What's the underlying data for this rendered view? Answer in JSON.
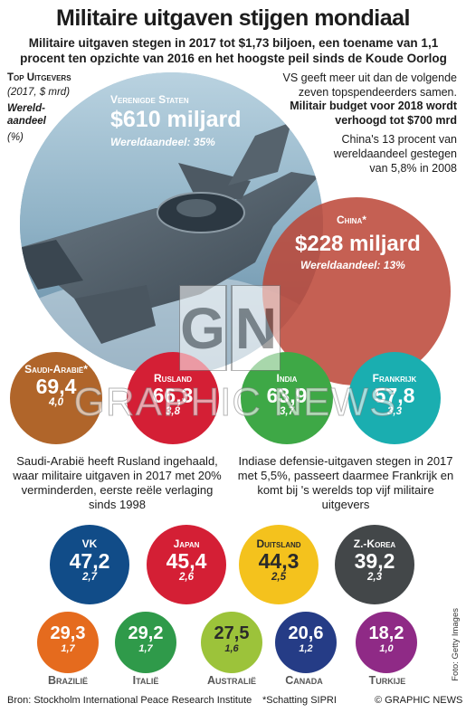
{
  "title": "Militaire uitgaven stijgen mondiaal",
  "subtitle": "Militaire uitgaven stegen in 2017 tot $1,73 biljoen, een toename van 1,1 procent ten opzichte van 2016 en het hoogste peil sinds de Koude Oorlog",
  "legend": {
    "title": "Top Uitgevers",
    "unit": "(2017, $ mrd)",
    "share_label": "Wereld-aandeel",
    "share_unit": "(%)"
  },
  "usa": {
    "name": "Verenigde Staten",
    "value": "$610 miljard",
    "share": "Wereldaandeel: 35%",
    "note": "VS geeft meer uit dan de volgende zeven topspendeerders samen.",
    "budget_note": "Militair budget voor 2018 wordt verhoogd tot $700 mrd"
  },
  "china": {
    "name": "China*",
    "value": "$228 miljard",
    "share": "Wereldaandeel: 13%",
    "note": "China's 13 procent van wereldaandeel gestegen van 5,8% in 2008"
  },
  "countries": [
    {
      "name": "Saudi-Arabië*",
      "value": "69,4",
      "share": "4,0"
    },
    {
      "name": "Rusland",
      "value": "66,3",
      "share": "3,8"
    },
    {
      "name": "India",
      "value": "63,9",
      "share": "3,7"
    },
    {
      "name": "Frankrijk",
      "value": "57,8",
      "share": "3,3"
    },
    {
      "name": "VK",
      "value": "47,2",
      "share": "2,7"
    },
    {
      "name": "Japan",
      "value": "45,4",
      "share": "2,6"
    },
    {
      "name": "Duitsland",
      "value": "44,3",
      "share": "2,5"
    },
    {
      "name": "Z.-Korea",
      "value": "39,2",
      "share": "2,3"
    },
    {
      "name": "Brazilië",
      "value": "29,3",
      "share": "1,7"
    },
    {
      "name": "Italië",
      "value": "29,2",
      "share": "1,7"
    },
    {
      "name": "Australië",
      "value": "27,5",
      "share": "1,6"
    },
    {
      "name": "Canada",
      "value": "20,6",
      "share": "1,2"
    },
    {
      "name": "Turkije",
      "value": "18,2",
      "share": "1,0"
    }
  ],
  "notes": {
    "saudi": "Saudi-Arabië heeft Rusland ingehaald, waar militaire uitgaven in 2017 met 20% verminderden, eerste reële verlaging sinds 1998",
    "india": "Indiase defensie-uitgaven stegen in 2017 met 5,5%, passeert daarmee Frankrijk en komt bij 's werelds top vijf militaire uitgevers"
  },
  "footer": {
    "source": "Bron: Stockholm International Peace Research Institute",
    "estimate": "*Schatting SIPRI",
    "credit": "© GRAPHIC NEWS",
    "photo": "Foto: Getty Images"
  },
  "watermark": {
    "logo": "GN",
    "text": "GRAPHIC NEWS"
  },
  "colors": {
    "usa_circle": "#7f96a6",
    "china_circle": "#bc4637",
    "saudi": "#b0652a",
    "russia": "#d41f35",
    "india": "#3ea846",
    "france": "#1aaeb0",
    "uk": "#114c88",
    "japan": "#d41f35",
    "germany": "#f4c21d",
    "korea": "#434749",
    "brazil": "#e56b1e",
    "italy": "#2f9a4a",
    "australia": "#9cc33a",
    "canada": "#253c86",
    "turkey": "#8f2a86"
  }
}
